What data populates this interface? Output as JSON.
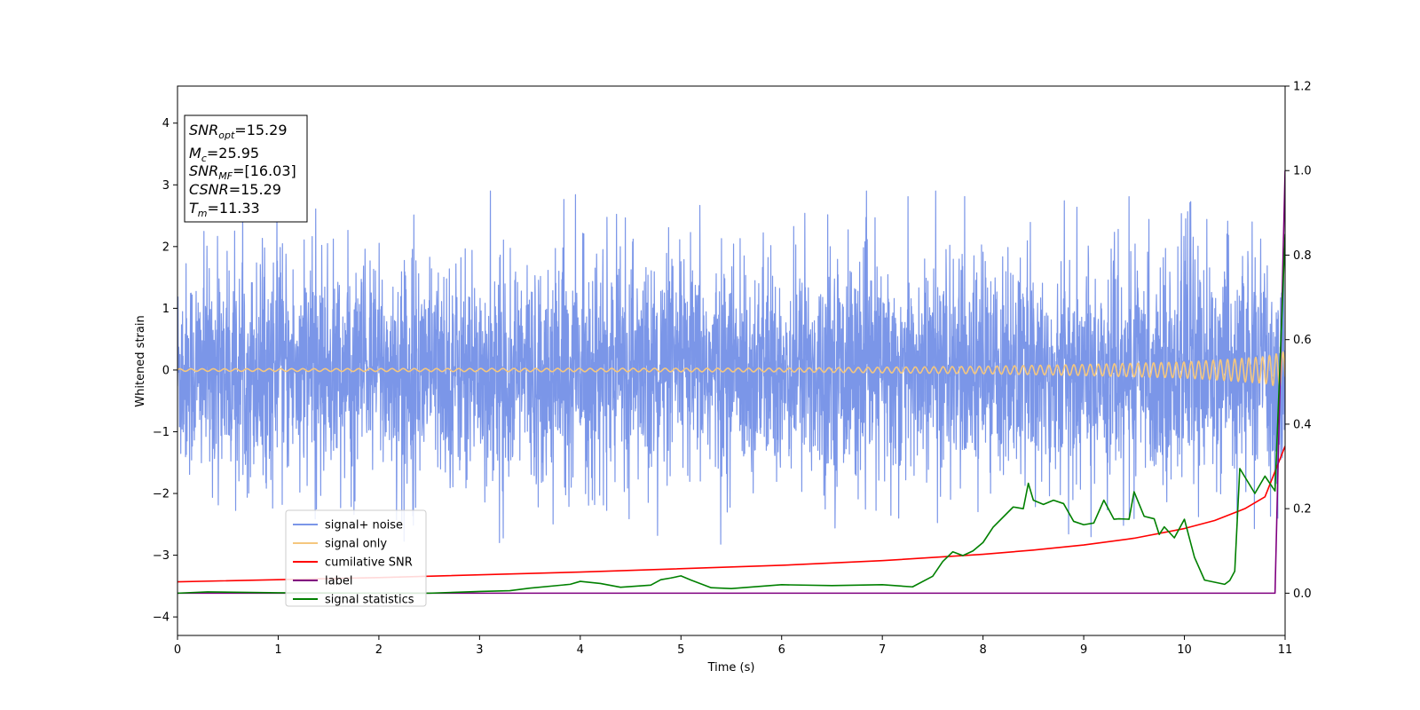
{
  "chart_data": {
    "type": "line",
    "xlabel": "Time (s)",
    "ylabel": "Whitened strain",
    "xlim": [
      0,
      11
    ],
    "ylim": [
      -4.3,
      4.6
    ],
    "y2lim": [
      -0.1,
      1.2
    ],
    "x_ticks": [
      "0",
      "1",
      "2",
      "3",
      "4",
      "5",
      "6",
      "7",
      "8",
      "9",
      "10",
      "11"
    ],
    "y_ticks": [
      "−4",
      "−3",
      "−2",
      "−1",
      "0",
      "1",
      "2",
      "3",
      "4"
    ],
    "y2_ticks": [
      "0.0",
      "0.2",
      "0.4",
      "0.6",
      "0.8",
      "1.0",
      "1.2"
    ],
    "grid": false,
    "legend_position": "lower-left",
    "info_box": {
      "snr_opt": {
        "symbol": "SNR",
        "sub": "opt",
        "value": "=15.29"
      },
      "mc": {
        "symbol": "M",
        "sub": "c",
        "value": "=25.95"
      },
      "snr_mf": {
        "symbol": "SNR",
        "sub": "MF",
        "value": "=[16.03]"
      },
      "csnr": {
        "symbol": "CSNR",
        "value": "=15.29"
      },
      "tm": {
        "symbol": "T",
        "sub": "m",
        "value": "=11.33"
      }
    },
    "series": [
      {
        "name": "signal+ noise",
        "axis": "left",
        "color": "#7b96e8",
        "kind": "noise",
        "sigma": 0.85,
        "spike_max": 2.9,
        "spike_min": -3.9
      },
      {
        "name": "signal only",
        "axis": "left",
        "color": "#f5c77e",
        "kind": "chirp",
        "x": [
          0,
          6,
          8,
          9,
          10,
          10.5,
          10.8,
          11
        ],
        "amplitude": [
          0.02,
          0.03,
          0.06,
          0.09,
          0.13,
          0.18,
          0.22,
          0.3
        ]
      },
      {
        "name": "cumilative SNR",
        "axis": "right",
        "color": "#ff0000",
        "x": [
          0,
          2,
          4,
          6,
          7,
          8,
          8.5,
          9,
          9.5,
          10,
          10.3,
          10.6,
          10.8,
          11
        ],
        "y": [
          0.027,
          0.037,
          0.05,
          0.066,
          0.077,
          0.092,
          0.102,
          0.114,
          0.13,
          0.153,
          0.172,
          0.2,
          0.228,
          0.348
        ]
      },
      {
        "name": "label",
        "axis": "right",
        "color": "#800080",
        "x": [
          0,
          10.9,
          10.9,
          11
        ],
        "y": [
          0.0,
          0.0,
          0.0,
          1.0
        ]
      },
      {
        "name": "signal statistics",
        "axis": "right",
        "color": "#008000",
        "x": [
          0,
          0.3,
          1,
          2,
          2.5,
          3,
          3.3,
          3.5,
          3.9,
          4,
          4.2,
          4.4,
          4.7,
          4.8,
          4.9,
          5,
          5.1,
          5.3,
          5.5,
          6,
          6.5,
          7,
          7.3,
          7.5,
          7.6,
          7.7,
          7.8,
          7.9,
          8,
          8.1,
          8.3,
          8.4,
          8.45,
          8.5,
          8.6,
          8.7,
          8.8,
          8.9,
          9,
          9.1,
          9.2,
          9.3,
          9.35,
          9.45,
          9.5,
          9.6,
          9.7,
          9.75,
          9.8,
          9.9,
          10,
          10.1,
          10.2,
          10.3,
          10.4,
          10.45,
          10.5,
          10.55,
          10.7,
          10.8,
          10.9,
          11
        ],
        "y": [
          0.0,
          0.003,
          0.001,
          0.0,
          0.0,
          0.004,
          0.006,
          0.012,
          0.021,
          0.028,
          0.023,
          0.014,
          0.019,
          0.032,
          0.036,
          0.041,
          0.031,
          0.013,
          0.011,
          0.02,
          0.018,
          0.02,
          0.015,
          0.04,
          0.075,
          0.098,
          0.089,
          0.1,
          0.12,
          0.156,
          0.204,
          0.2,
          0.26,
          0.22,
          0.21,
          0.22,
          0.212,
          0.17,
          0.162,
          0.166,
          0.22,
          0.175,
          0.176,
          0.175,
          0.24,
          0.182,
          0.176,
          0.139,
          0.157,
          0.131,
          0.175,
          0.085,
          0.031,
          0.026,
          0.021,
          0.03,
          0.052,
          0.295,
          0.236,
          0.277,
          0.242,
          0.85
        ]
      }
    ]
  }
}
